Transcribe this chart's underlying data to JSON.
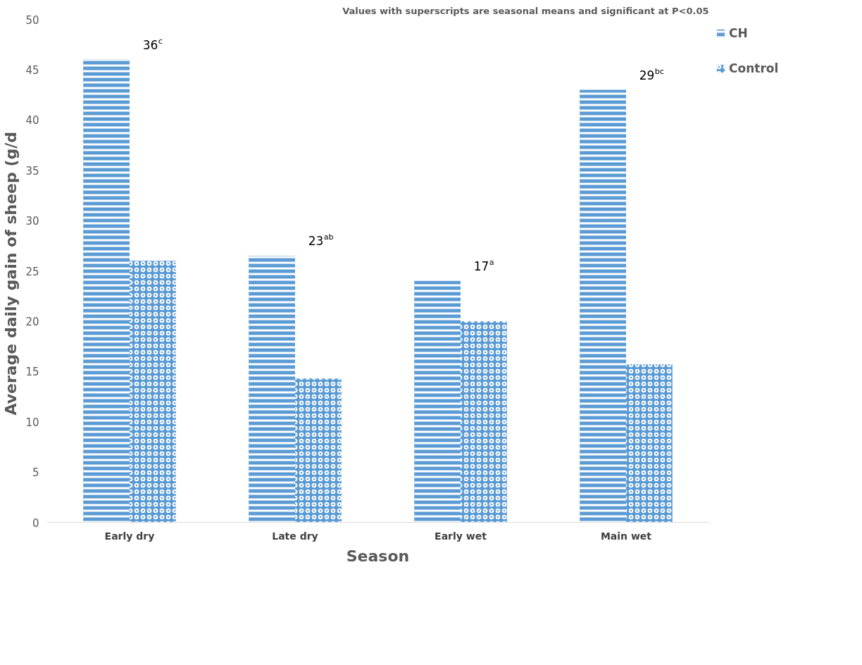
{
  "chart_data": {
    "type": "bar",
    "xlabel": "Season",
    "ylabel": "Average daily  gain of sheep (g/d",
    "categories": [
      "Early dry",
      "Late dry",
      "Early wet",
      "Main wet"
    ],
    "series": [
      {
        "name": "CH",
        "color": "#5b9bd5",
        "values": [
          46,
          26.5,
          24,
          43
        ]
      },
      {
        "name": "Control",
        "color": "#5b9bd5",
        "values": [
          26,
          14.3,
          20,
          15.7
        ]
      }
    ],
    "ylim": [
      0,
      50
    ],
    "yticks": [
      0,
      5,
      10,
      15,
      20,
      25,
      30,
      35,
      40,
      45,
      50
    ],
    "grid": false,
    "legend": "top right",
    "annotations": [
      "Values with superscripts are seasonal means and significant at P<0.05",
      "36$^{c}$",
      "23$^{ab}$",
      "17$^{a}$",
      "29$^{bc}$"
    ]
  }
}
